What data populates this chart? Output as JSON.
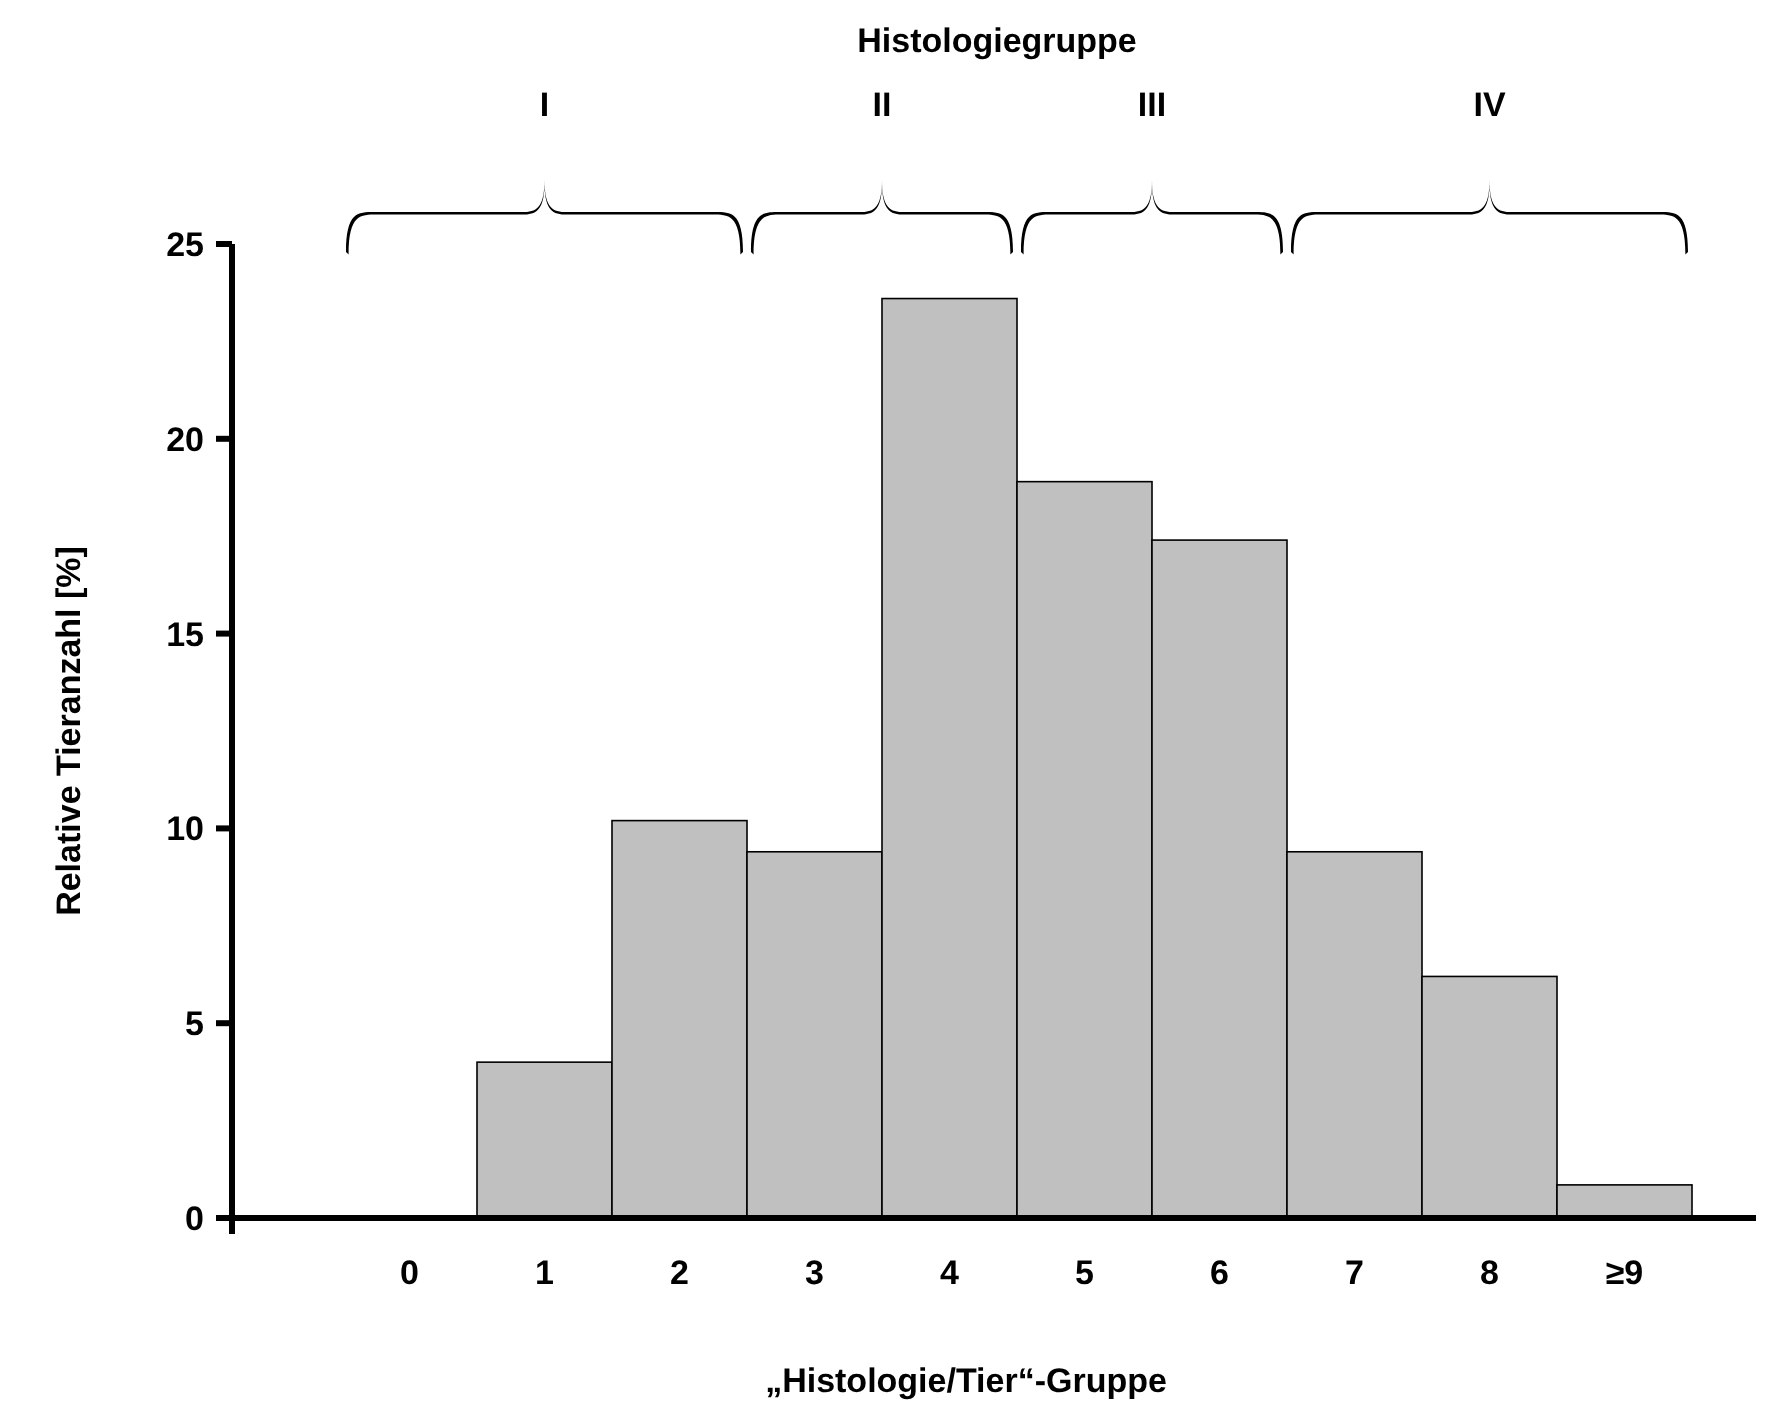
{
  "chart_data": {
    "type": "bar",
    "xlabel": "„Histologie/Tier“-Gruppe",
    "ylabel": "Relative Tieranzahl [%]",
    "categories": [
      "0",
      "1",
      "2",
      "3",
      "4",
      "5",
      "6",
      "7",
      "8",
      "≥9"
    ],
    "values": [
      0,
      4.0,
      10.2,
      9.4,
      23.6,
      18.9,
      17.4,
      9.4,
      6.2,
      0.85
    ],
    "color": "#c0c0c0",
    "ylim": [
      0,
      25
    ],
    "yticks": [
      0,
      5,
      10,
      15,
      20,
      25
    ],
    "grid": false,
    "annotations": [
      "Histologiegruppe",
      "I",
      "II",
      "III",
      "IV"
    ]
  }
}
